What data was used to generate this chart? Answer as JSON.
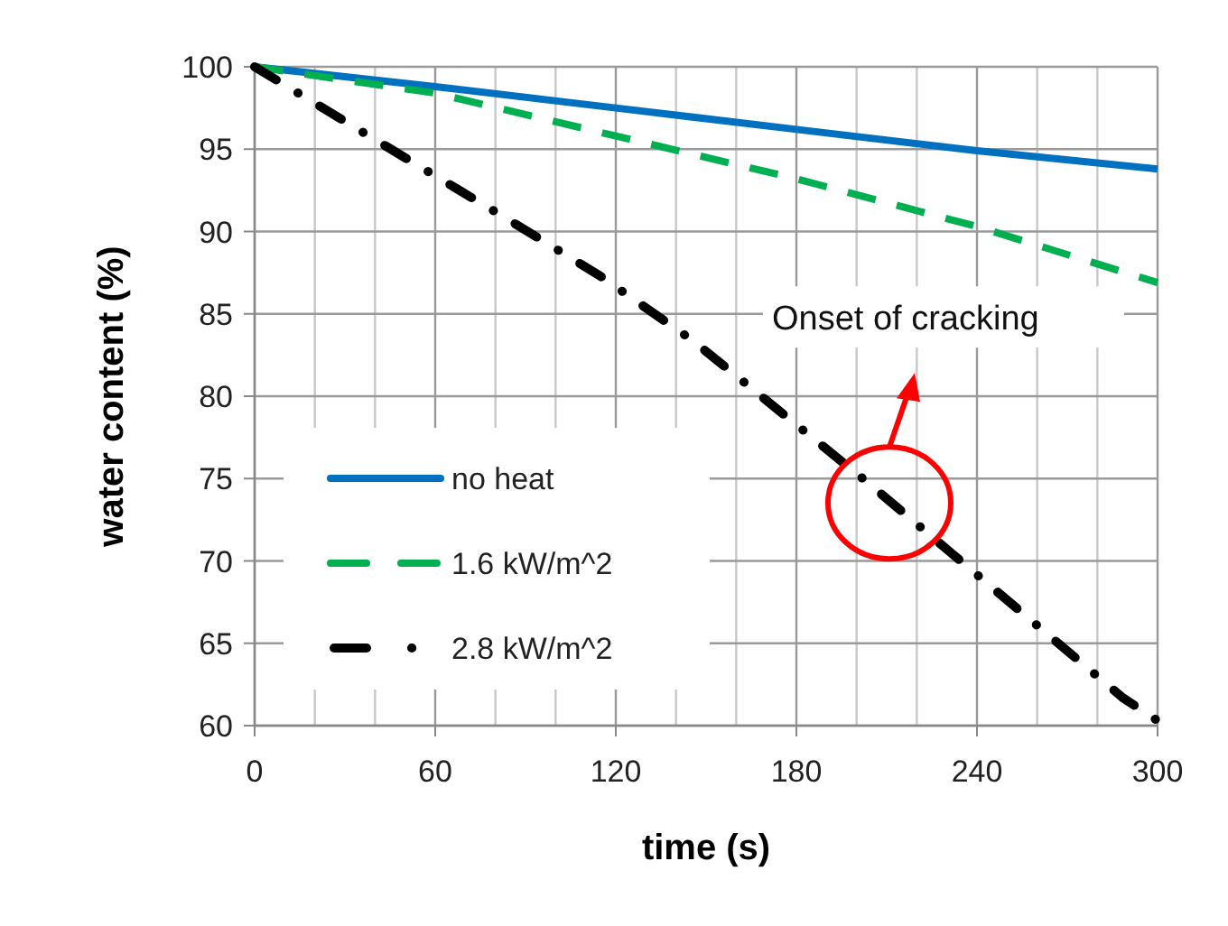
{
  "chart_data": {
    "type": "line",
    "xlabel": "time (s)",
    "ylabel": "water content (%)",
    "xlim": [
      0,
      300
    ],
    "ylim": [
      60,
      100
    ],
    "xticks": [
      0,
      {
        "value": 20,
        "label": null
      },
      {
        "value": 40,
        "label": null
      },
      60,
      {
        "value": 80,
        "label": null
      },
      {
        "value": 100,
        "label": null
      },
      120,
      {
        "value": 140,
        "label": null
      },
      {
        "value": 160,
        "label": null
      },
      180,
      {
        "value": 200,
        "label": null
      },
      {
        "value": 220,
        "label": null
      },
      240,
      {
        "value": 260,
        "label": null
      },
      {
        "value": 280,
        "label": null
      },
      300
    ],
    "yticks": [
      60,
      65,
      70,
      75,
      80,
      85,
      90,
      95,
      100
    ],
    "grid": true,
    "legend": "bottom left",
    "series": [
      {
        "name": "no heat",
        "color": "#0070c0",
        "line_style": "solid",
        "x": [
          0,
          60,
          120,
          180,
          240,
          300
        ],
        "values": [
          100,
          98.8,
          97.5,
          96.2,
          94.9,
          93.8
        ]
      },
      {
        "name": "1.6 kW/m^2",
        "color": "#00b050",
        "line_style": "dashed",
        "x": [
          0,
          60,
          120,
          180,
          240,
          300
        ],
        "values": [
          100,
          98.4,
          95.8,
          93.2,
          90.3,
          86.9
        ]
      },
      {
        "name": "2.8 kW/m^2",
        "color": "#000000",
        "line_style": "dashdot",
        "x": [
          0,
          51.6,
          83.6,
          114.8,
          145.4,
          203.4,
          232,
          288.4,
          300
        ],
        "values": [
          100,
          94.3,
          90.8,
          87.3,
          83.4,
          74.8,
          70.4,
          61.7,
          60.3
        ]
      }
    ],
    "annotations": [
      "Onset of cracking"
    ]
  }
}
